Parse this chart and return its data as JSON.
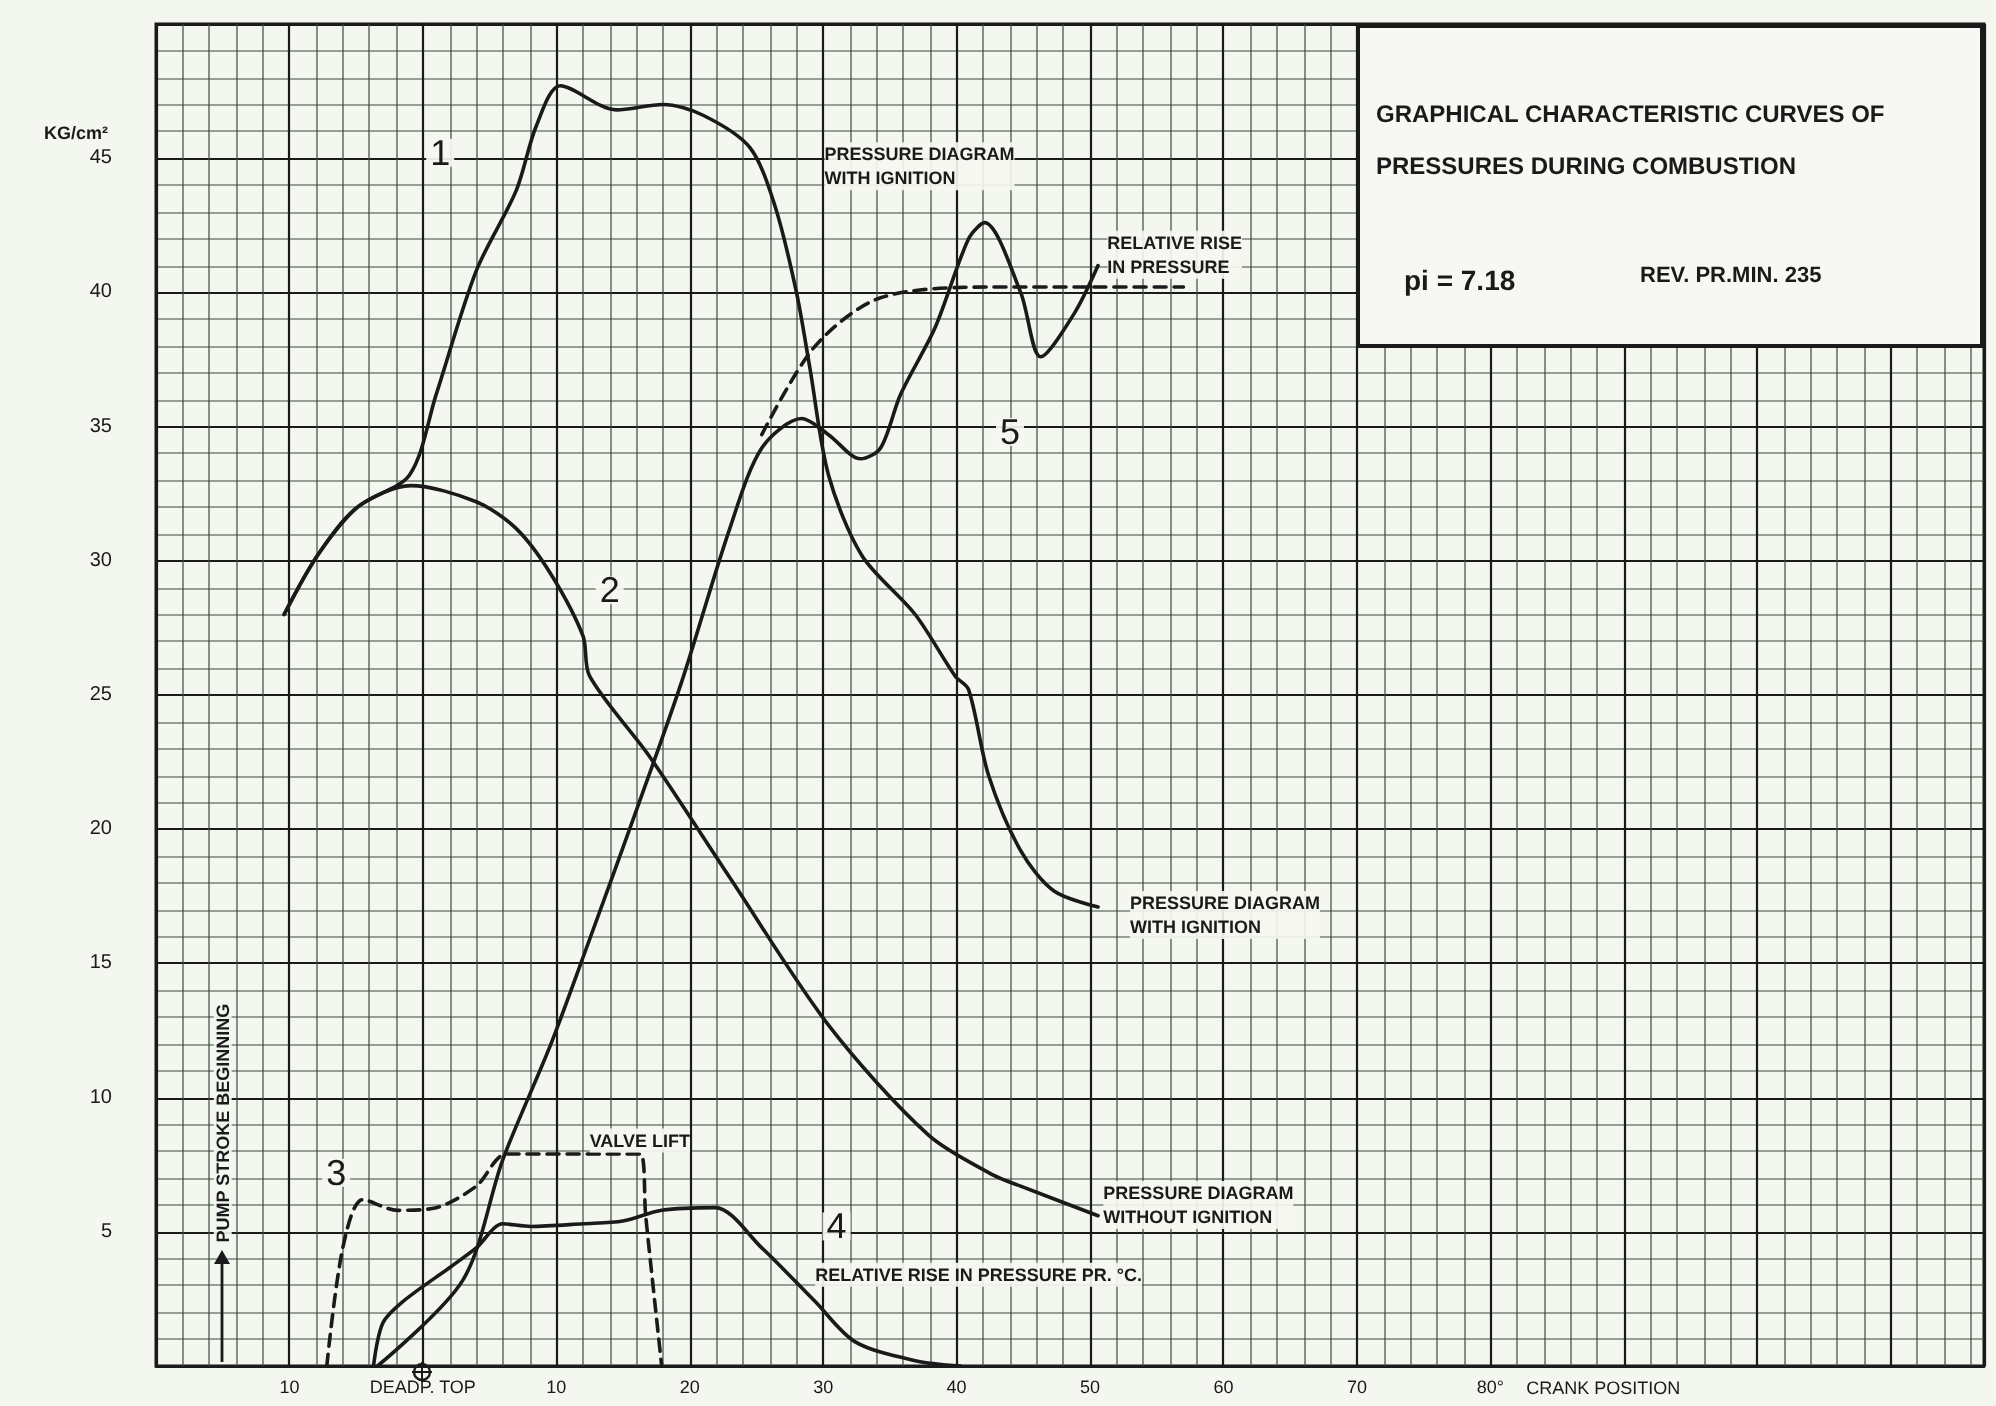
{
  "chart_data": {
    "type": "line",
    "title": "GRAPHICAL CHARACTERISTIC CURVES OF PRESSURES DURING COMBUSTION",
    "xlabel": "CRANK POSITION",
    "ylabel": "KG/cm²",
    "xlim": [
      -20,
      117
    ],
    "ylim": [
      0,
      50
    ],
    "xticks": [
      {
        "value": -10,
        "label": "10"
      },
      {
        "value": 0,
        "label": "DEADP. TOP"
      },
      10,
      20,
      30,
      40,
      50,
      60,
      70,
      {
        "value": 80,
        "label": "80°"
      }
    ],
    "yticks": [
      5,
      10,
      15,
      20,
      25,
      30,
      35,
      40,
      45
    ],
    "grid": true,
    "marker": "none",
    "series": [
      {
        "color": "#1a1a1a",
        "line_style": "solid",
        "x": [
          -10.4,
          -7.9,
          -4.9,
          -1,
          1,
          4,
          7,
          8.5,
          10.3,
          14.5,
          18,
          21,
          24.5,
          26.4,
          28,
          29,
          30.4,
          32.9,
          36.9,
          39.9,
          40.9,
          42.4,
          44.8,
          47.3,
          50.6
        ],
        "values": [
          28,
          30.2,
          32,
          33.2,
          36.2,
          40.8,
          43.8,
          46.2,
          47.7,
          46.8,
          47,
          46.6,
          45.4,
          43.2,
          40,
          37.2,
          33.2,
          30.2,
          28,
          25.7,
          25.2,
          22,
          19.2,
          17.7,
          17.1
        ]
      },
      {
        "color": "#1a1a1a",
        "line_style": "solid",
        "x": [
          -10.4,
          -7.9,
          -4.9,
          -0.9,
          4,
          7,
          9.6,
          12,
          12.5,
          17,
          23,
          30.4,
          37.9,
          42.8,
          44.8,
          50.6
        ],
        "values": [
          28,
          30.2,
          32,
          32.8,
          32.2,
          31.2,
          29.5,
          27.2,
          25.7,
          22.7,
          18.2,
          12.7,
          8.6,
          7.1,
          6.7,
          5.6
        ]
      },
      {
        "color": "#1a1a1a",
        "line_style": "dashed",
        "x": [
          -7.2,
          -6,
          -4.5,
          -1.9,
          1,
          4,
          6.3,
          16.3,
          16.7,
          17.9
        ],
        "values": [
          0,
          4.4,
          6.2,
          5.8,
          5.9,
          6.7,
          7.9,
          7.9,
          5.6,
          0
        ]
      },
      {
        "color": "#1a1a1a",
        "line_style": "solid",
        "x": [
          -3.7,
          -3,
          -1.5,
          2.1,
          4,
          6,
          8.1,
          12,
          15,
          17.9,
          21.9,
          25.4,
          29.4,
          32.4,
          36.9,
          40.3
        ],
        "values": [
          0,
          1.6,
          2.4,
          3.7,
          4.4,
          5.3,
          5.2,
          5.3,
          5.4,
          5.8,
          5.9,
          4.4,
          2.4,
          0.9,
          0.2,
          0
        ]
      },
      {
        "color": "#1a1a1a",
        "line_style": "solid",
        "x": [
          -3.4,
          3,
          6,
          9.6,
          12.5,
          16,
          19.4,
          23,
          25.4,
          28.4,
          30.4,
          32.8,
          34.3,
          35.8,
          38.4,
          40.9,
          42.1,
          44.8,
          46.3,
          48.8,
          50.6
        ],
        "values": [
          0,
          3.2,
          7.7,
          12,
          15.9,
          20.7,
          25.5,
          31.2,
          34.2,
          35.3,
          34.7,
          33.8,
          34.2,
          36.2,
          38.7,
          42,
          42.6,
          40,
          37.6,
          39.2,
          41
        ]
      },
      {
        "color": "#1a1a1a",
        "line_style": "dashed",
        "x": [
          25.4,
          29.4,
          34.3,
          42.8,
          50,
          57
        ],
        "values": [
          34.7,
          38,
          39.8,
          40.2,
          40.2,
          40.2
        ]
      }
    ],
    "annotations": [
      "PRESSURE DIAGRAM\nWITH IGNITION",
      "PRESSURE DIAGRAM\nWITH IGNITION",
      "PRESSURE DIAGRAM\nWITHOUT IGNITION",
      "RELATIVE RISE IN PRESSURE PR. °C.",
      "VALVE LIFT",
      "RELATIVE RISE\nIN PRESSURE",
      "1",
      "2",
      "3",
      "4",
      "5",
      "PUMP STROKE BEGINNING",
      "pi = 7.18",
      "REV. PR.MIN. 235"
    ]
  }
}
